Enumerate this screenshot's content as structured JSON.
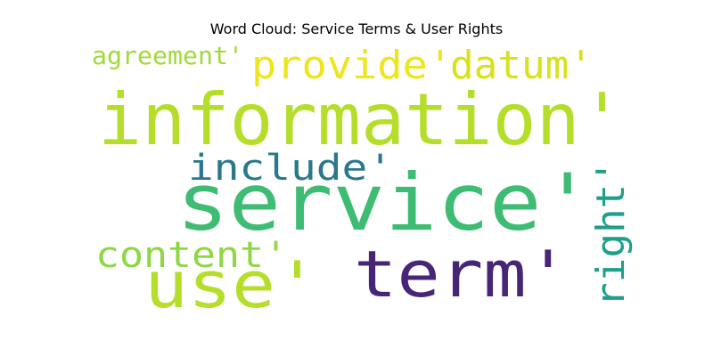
{
  "title": "Word Cloud: Service Terms & User Rights",
  "words": [
    {
      "text": "information'",
      "color": "#b5de2b"
    },
    {
      "text": "service'",
      "color": "#3fbc73"
    },
    {
      "text": "term'",
      "color": "#482677"
    },
    {
      "text": "use'",
      "color": "#b5de2b"
    },
    {
      "text": "provide'",
      "color": "#efe51c"
    },
    {
      "text": "datum'",
      "color": "#d8e219"
    },
    {
      "text": "include'",
      "color": "#2a788e"
    },
    {
      "text": "content'",
      "color": "#8fd744"
    },
    {
      "text": "agreement'",
      "color": "#a0da39"
    },
    {
      "text": "right'",
      "color": "#1f9e89"
    }
  ]
}
